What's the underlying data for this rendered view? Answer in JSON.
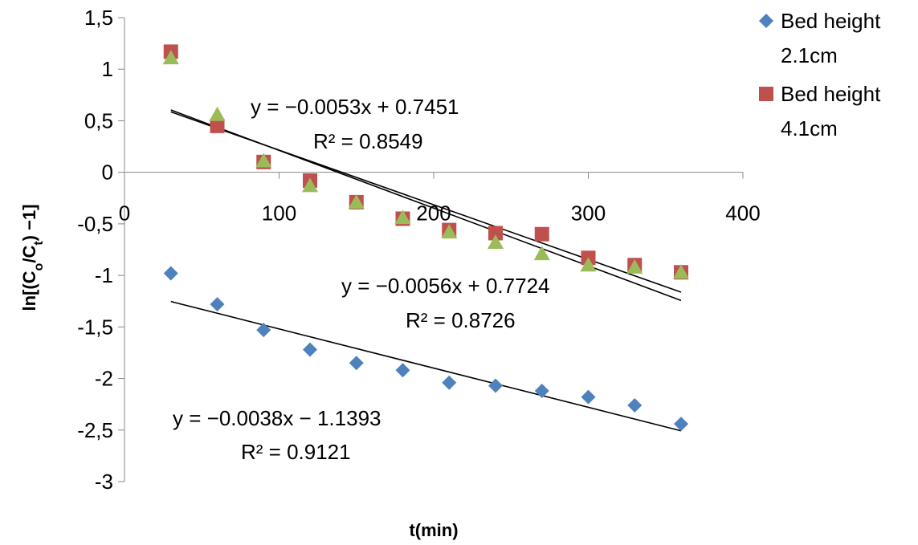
{
  "chart_data": {
    "type": "scatter",
    "title": "",
    "xlabel": "t(min)",
    "ylabel_parts": [
      "ln[(C",
      "o",
      "/C",
      "t",
      ") −1]"
    ],
    "xlim": [
      0,
      400
    ],
    "ylim": [
      -3,
      1.5
    ],
    "x_ticks": [
      "0",
      "100",
      "200",
      "300",
      "400"
    ],
    "y_ticks": [
      "1,5",
      "1",
      "0,5",
      "0",
      "-0,5",
      "-1",
      "-1,5",
      "-2",
      "-2,5",
      "-3"
    ],
    "grid": false,
    "legend_position": "top-right",
    "series": [
      {
        "name_lines": [
          "Bed height",
          "2.1cm"
        ],
        "marker": "diamond",
        "color": "#4F81BD",
        "x": [
          30,
          60,
          90,
          120,
          150,
          180,
          210,
          240,
          270,
          300,
          330,
          360
        ],
        "y": [
          -0.98,
          -1.28,
          -1.53,
          -1.72,
          -1.85,
          -1.92,
          -2.04,
          -2.07,
          -2.12,
          -2.18,
          -2.26,
          -2.44
        ],
        "trendline": {
          "slope": -0.0038,
          "intercept": -1.1393,
          "equation": "y = −0.0038x − 1.1393",
          "r2": "R² = 0.9121"
        }
      },
      {
        "name_lines": [
          "Bed height",
          "4.1cm"
        ],
        "marker": "square",
        "color": "#C0504D",
        "x": [
          30,
          60,
          90,
          120,
          150,
          180,
          210,
          240,
          270,
          300,
          330,
          360
        ],
        "y": [
          1.17,
          0.45,
          0.1,
          -0.08,
          -0.29,
          -0.45,
          -0.56,
          -0.59,
          -0.6,
          -0.83,
          -0.9,
          -0.97
        ],
        "trendline": {
          "slope": -0.0053,
          "intercept": 0.7451,
          "equation": "y = −0.0053x + 0.7451",
          "r2": "R² = 0.8549"
        }
      },
      {
        "name_lines": [],
        "marker": "triangle",
        "color": "#9BBB59",
        "x": [
          30,
          60,
          90,
          120,
          150,
          180,
          210,
          240,
          270,
          300,
          330,
          360
        ],
        "y": [
          1.11,
          0.56,
          0.11,
          -0.13,
          -0.29,
          -0.44,
          -0.58,
          -0.68,
          -0.79,
          -0.9,
          -0.92,
          -0.97
        ],
        "trendline": {
          "slope": -0.0056,
          "intercept": 0.7724,
          "equation": "y = −0.0056x + 0.7724",
          "r2": "R² = 0.8726"
        }
      }
    ]
  }
}
